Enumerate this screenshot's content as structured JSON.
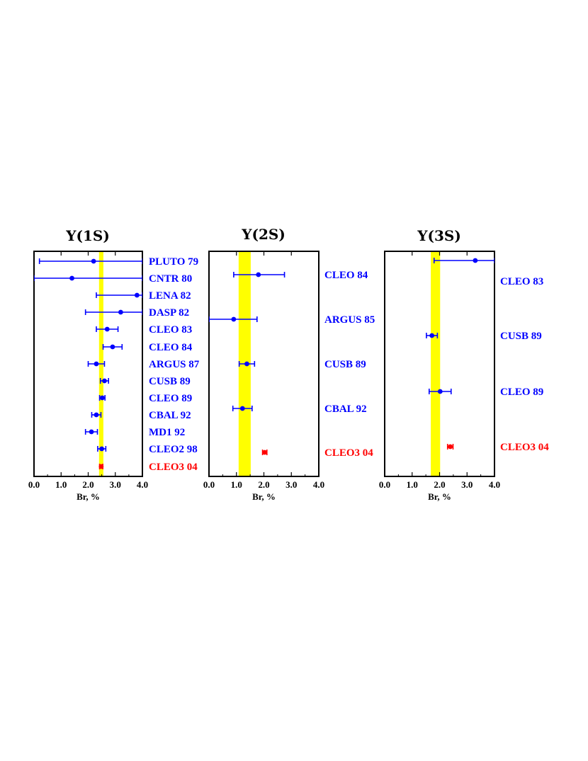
{
  "chart_data": [
    {
      "type": "scatter",
      "title": "Y(1S)",
      "xlabel": "Br, %",
      "xlim": [
        0.0,
        4.0
      ],
      "xticks": [
        "0.0",
        "1.0",
        "2.0",
        "3.0",
        "4.0"
      ],
      "band": {
        "min": 2.4,
        "max": 2.56,
        "color": "#ffff00"
      },
      "points": [
        {
          "label": "PLUTO 79",
          "value": 2.2,
          "err_lo": 2.0,
          "err_hi": 1.8,
          "color": "#0000ff"
        },
        {
          "label": "CNTR 80",
          "value": 1.4,
          "err_lo": 1.4,
          "err_hi": 2.6,
          "color": "#0000ff"
        },
        {
          "label": "LENA 82",
          "value": 3.8,
          "err_lo": 1.5,
          "err_hi": 0.2,
          "color": "#0000ff"
        },
        {
          "label": "DASP 82",
          "value": 3.2,
          "err_lo": 1.3,
          "err_hi": 0.8,
          "color": "#0000ff"
        },
        {
          "label": "CLEO 83",
          "value": 2.7,
          "err_lo": 0.4,
          "err_hi": 0.4,
          "color": "#0000ff"
        },
        {
          "label": "CLEO 84",
          "value": 2.9,
          "err_lo": 0.35,
          "err_hi": 0.35,
          "color": "#0000ff"
        },
        {
          "label": "ARGUS 87",
          "value": 2.3,
          "err_lo": 0.3,
          "err_hi": 0.3,
          "color": "#0000ff"
        },
        {
          "label": "CUSB 89",
          "value": 2.6,
          "err_lo": 0.15,
          "err_hi": 0.15,
          "color": "#0000ff"
        },
        {
          "label": "CLEO 89",
          "value": 2.52,
          "err_lo": 0.1,
          "err_hi": 0.1,
          "color": "#0000ff"
        },
        {
          "label": "CBAL 92",
          "value": 2.3,
          "err_lo": 0.17,
          "err_hi": 0.17,
          "color": "#0000ff"
        },
        {
          "label": "MD1 92",
          "value": 2.12,
          "err_lo": 0.22,
          "err_hi": 0.22,
          "color": "#0000ff"
        },
        {
          "label": "CLEO2 98",
          "value": 2.5,
          "err_lo": 0.15,
          "err_hi": 0.15,
          "color": "#0000ff"
        },
        {
          "label": "CLEO3 04",
          "value": 2.48,
          "err_lo": 0.06,
          "err_hi": 0.06,
          "color": "#ff0000"
        }
      ]
    },
    {
      "type": "scatter",
      "title": "Y(2S)",
      "xlabel": "Br, %",
      "xlim": [
        0.0,
        4.0
      ],
      "xticks": [
        "0.0",
        "1.0",
        "2.0",
        "3.0",
        "4.0"
      ],
      "band": {
        "min": 1.08,
        "max": 1.52,
        "color": "#ffff00"
      },
      "points": [
        {
          "label": "CLEO 84",
          "value": 1.8,
          "err_lo": 0.9,
          "err_hi": 0.95,
          "color": "#0000ff"
        },
        {
          "label": "ARGUS 85",
          "value": 0.9,
          "err_lo": 0.9,
          "err_hi": 0.85,
          "color": "#0000ff"
        },
        {
          "label": "CUSB 89",
          "value": 1.38,
          "err_lo": 0.28,
          "err_hi": 0.28,
          "color": "#0000ff"
        },
        {
          "label": "CBAL 92",
          "value": 1.22,
          "err_lo": 0.35,
          "err_hi": 0.35,
          "color": "#0000ff"
        },
        {
          "label": "CLEO3 04",
          "value": 2.03,
          "err_lo": 0.08,
          "err_hi": 0.08,
          "color": "#ff0000"
        }
      ]
    },
    {
      "type": "scatter",
      "title": "Y(3S)",
      "xlabel": "Br, %",
      "xlim": [
        0.0,
        4.0
      ],
      "xticks": [
        "0.0",
        "1.0",
        "2.0",
        "3.0",
        "4.0"
      ],
      "band": {
        "min": 1.68,
        "max": 2.02,
        "color": "#ffff00"
      },
      "points": [
        {
          "label": "CLEO 83",
          "value": 3.3,
          "err_lo": 1.5,
          "err_hi": 0.7,
          "color": "#0000ff"
        },
        {
          "label": "CUSB 89",
          "value": 1.72,
          "err_lo": 0.2,
          "err_hi": 0.2,
          "color": "#0000ff"
        },
        {
          "label": "CLEO 89",
          "value": 2.02,
          "err_lo": 0.4,
          "err_hi": 0.4,
          "color": "#0000ff"
        },
        {
          "label": "CLEO3 04",
          "value": 2.39,
          "err_lo": 0.1,
          "err_hi": 0.1,
          "color": "#ff0000"
        }
      ]
    }
  ]
}
